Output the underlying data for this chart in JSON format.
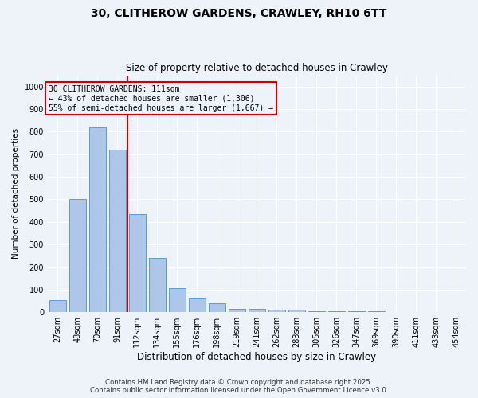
{
  "title": "30, CLITHEROW GARDENS, CRAWLEY, RH10 6TT",
  "subtitle": "Size of property relative to detached houses in Crawley",
  "xlabel": "Distribution of detached houses by size in Crawley",
  "ylabel": "Number of detached properties",
  "categories": [
    "27sqm",
    "48sqm",
    "70sqm",
    "91sqm",
    "112sqm",
    "134sqm",
    "155sqm",
    "176sqm",
    "198sqm",
    "219sqm",
    "241sqm",
    "262sqm",
    "283sqm",
    "305sqm",
    "326sqm",
    "347sqm",
    "369sqm",
    "390sqm",
    "411sqm",
    "433sqm",
    "454sqm"
  ],
  "values": [
    55,
    500,
    820,
    720,
    435,
    240,
    105,
    60,
    40,
    15,
    15,
    10,
    10,
    5,
    5,
    5,
    3,
    2,
    1,
    0,
    0
  ],
  "bar_color": "#aec6e8",
  "bar_edge_color": "#5b9bd5",
  "property_line_color": "#cc0000",
  "annotation_line1": "30 CLITHEROW GARDENS: 111sqm",
  "annotation_line2": "← 43% of detached houses are smaller (1,306)",
  "annotation_line3": "55% of semi-detached houses are larger (1,667) →",
  "annotation_box_color": "#cc0000",
  "ylim": [
    0,
    1050
  ],
  "yticks": [
    0,
    100,
    200,
    300,
    400,
    500,
    600,
    700,
    800,
    900,
    1000
  ],
  "background_color": "#eef2f9",
  "grid_color": "#ffffff",
  "footer_line1": "Contains HM Land Registry data © Crown copyright and database right 2025.",
  "footer_line2": "Contains public sector information licensed under the Open Government Licence v3.0."
}
